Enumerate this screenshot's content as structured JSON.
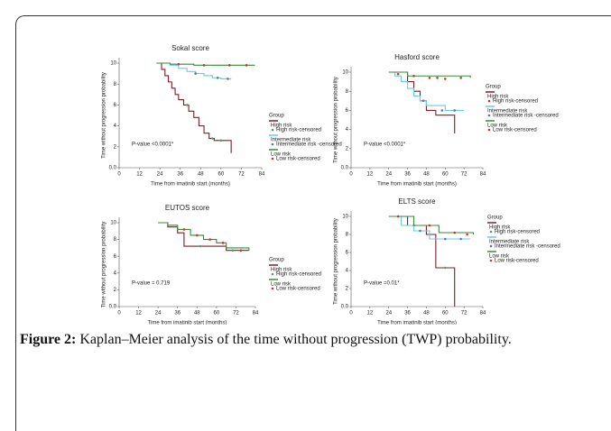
{
  "chart_data": [
    {
      "type": "line",
      "step": true,
      "title": "Sokal score",
      "xlabel": "Time from imatinib start (months)",
      "ylabel": "Time without progression probability",
      "annotation": "P-value <0.0001*",
      "legend_title": "Group",
      "xlim": [
        0,
        84
      ],
      "xticks": [
        0,
        12,
        24,
        36,
        48,
        60,
        72,
        84
      ],
      "ylim": [
        0,
        10
      ],
      "yticks": [
        {
          "value": 0,
          "label": "0.0"
        },
        2,
        4,
        6,
        8,
        10
      ],
      "series": [
        {
          "name": "High risk",
          "style": "step",
          "color": "#7a1f2b",
          "x": [
            22,
            25,
            27,
            29,
            31,
            33,
            35,
            38,
            41,
            44,
            47,
            50,
            53,
            56,
            66,
            66
          ],
          "values": [
            10,
            9.4,
            8.8,
            8.2,
            7.6,
            7,
            6.5,
            6,
            5.4,
            4.8,
            4,
            3.3,
            2.8,
            2.6,
            2.6,
            1.4
          ]
        },
        {
          "name": "High risk-censored",
          "style": "points",
          "color": "#5a9a6a",
          "x": [
            40,
            55,
            60
          ],
          "values": [
            6,
            2.8,
            2.6
          ]
        },
        {
          "name": "Intermediate risk",
          "style": "step",
          "color": "#6cc9e0",
          "x": [
            22,
            30,
            35,
            40,
            45,
            50,
            55,
            60,
            66
          ],
          "values": [
            10,
            9.8,
            9.5,
            9.2,
            9,
            8.8,
            8.6,
            8.5,
            8.5
          ]
        },
        {
          "name": "Intermediate risk -censored",
          "style": "points",
          "color": "#4a7ab0",
          "x": [
            45,
            58,
            64
          ],
          "values": [
            9,
            8.6,
            8.5
          ]
        },
        {
          "name": "Low risk",
          "style": "step",
          "color": "#3a8a3a",
          "x": [
            22,
            30,
            44,
            80
          ],
          "values": [
            10,
            9.9,
            9.8,
            9.8
          ]
        },
        {
          "name": "Low risk-censored",
          "style": "points",
          "color": "#d03030",
          "x": [
            35,
            50,
            65,
            75
          ],
          "values": [
            9.9,
            9.8,
            9.8,
            9.8
          ]
        }
      ]
    },
    {
      "type": "line",
      "step": true,
      "title": "Hasford score",
      "xlabel": "Time from imatinib start (months)",
      "ylabel": "Time without progression probability",
      "annotation": "P-value <0.0001*",
      "legend_title": "Group",
      "xlim": [
        0,
        84
      ],
      "xticks": [
        0,
        12,
        24,
        36,
        48,
        60,
        72,
        84
      ],
      "ylim": [
        0,
        10
      ],
      "yticks": [
        {
          "value": 0,
          "label": "0.0"
        },
        2,
        4,
        6,
        8,
        10
      ],
      "series": [
        {
          "name": "High risk",
          "style": "step",
          "color": "#7a1f2b",
          "x": [
            24,
            36,
            40,
            44,
            48,
            54,
            66,
            66
          ],
          "values": [
            10,
            9,
            8,
            7,
            6,
            5.5,
            5.5,
            3.6
          ]
        },
        {
          "name": "High risk-censored",
          "style": "points",
          "color": "#d03030",
          "x": [
            30,
            50,
            60
          ],
          "values": [
            9.8,
            9.4,
            9.3
          ]
        },
        {
          "name": "Intermediate risk",
          "style": "step",
          "color": "#6cc9e0",
          "x": [
            24,
            28,
            32,
            36,
            40,
            44,
            48,
            60,
            72
          ],
          "values": [
            10,
            9.6,
            9,
            8.3,
            7.5,
            7,
            6.5,
            6,
            6
          ]
        },
        {
          "name": "Intermediate risk -censored",
          "style": "points",
          "color": "#4a7ab0",
          "x": [
            46,
            58,
            66
          ],
          "values": [
            7,
            6,
            6
          ]
        },
        {
          "name": "Low risk",
          "style": "step",
          "color": "#3a8a3a",
          "x": [
            24,
            36,
            76
          ],
          "values": [
            10,
            9.6,
            9.4
          ]
        },
        {
          "name": "Low risk-censored",
          "style": "points",
          "color": "#d03030",
          "x": [
            40,
            55,
            70
          ],
          "values": [
            9.6,
            9.4,
            9.4
          ]
        }
      ]
    },
    {
      "type": "line",
      "step": true,
      "title": "EUTOS score",
      "xlabel": "Time from imatinib start (months)",
      "ylabel": "Time without progression probability",
      "annotation": "P-value = 0.719",
      "legend_title": "Group",
      "xlim": [
        0,
        84
      ],
      "xticks": [
        0,
        12,
        24,
        36,
        48,
        60,
        72,
        84
      ],
      "ylim": [
        0,
        10
      ],
      "yticks": [
        {
          "value": 0,
          "label": "0.0"
        },
        2,
        4,
        6,
        8,
        10
      ],
      "series": [
        {
          "name": "High risk",
          "style": "step",
          "color": "#7a1f2b",
          "x": [
            24,
            30,
            36,
            40,
            60,
            66,
            80
          ],
          "values": [
            10,
            9.5,
            8.8,
            7.2,
            7.2,
            6.7,
            6.7
          ]
        },
        {
          "name": "High risk-censored",
          "style": "points",
          "color": "#5a9a6a",
          "x": [
            50,
            70
          ],
          "values": [
            7.2,
            6.7
          ]
        },
        {
          "name": "Low risk",
          "style": "step",
          "color": "#3a8a3a",
          "x": [
            24,
            30,
            36,
            44,
            52,
            60,
            66,
            80
          ],
          "values": [
            10,
            9.7,
            9.2,
            8.5,
            8,
            7.6,
            7,
            6.7
          ]
        },
        {
          "name": "Low risk-censored",
          "style": "points",
          "color": "#d03030",
          "x": [
            40,
            48,
            56,
            64,
            75
          ],
          "values": [
            9.2,
            8.5,
            8,
            7.6,
            6.7
          ]
        }
      ]
    },
    {
      "type": "line",
      "step": true,
      "title": "ELTS score",
      "xlabel": "Time from imatinib start (months)",
      "ylabel": "Time without progression probability",
      "annotation": "P-value =0.01*",
      "legend_title": "Group",
      "xlim": [
        0,
        84
      ],
      "xticks": [
        0,
        12,
        24,
        36,
        48,
        60,
        72,
        84
      ],
      "ylim": [
        0,
        10
      ],
      "yticks": [
        {
          "value": 0,
          "label": "0.0"
        },
        2,
        4,
        6,
        8,
        10
      ],
      "series": [
        {
          "name": "High risk",
          "style": "step",
          "color": "#7a1f2b",
          "x": [
            24,
            36,
            48,
            54,
            66,
            66
          ],
          "values": [
            10,
            9,
            8,
            4.3,
            4.3,
            0
          ]
        },
        {
          "name": "High risk-censored",
          "style": "points",
          "color": "#5a9a6a",
          "x": [
            40,
            60
          ],
          "values": [
            9,
            4.3
          ]
        },
        {
          "name": "Intermediate risk",
          "style": "step",
          "color": "#6cc9e0",
          "x": [
            24,
            32,
            40,
            50,
            76
          ],
          "values": [
            10,
            9,
            8.4,
            7.5,
            7.5
          ]
        },
        {
          "name": "Intermediate risk -censored",
          "style": "points",
          "color": "#4a7ab0",
          "x": [
            44,
            60,
            70
          ],
          "values": [
            8.4,
            7.5,
            7.5
          ]
        },
        {
          "name": "Low risk",
          "style": "step",
          "color": "#3a8a3a",
          "x": [
            24,
            40,
            56,
            78
          ],
          "values": [
            10,
            9,
            8.2,
            8
          ]
        },
        {
          "name": "Low risk-censored",
          "style": "points",
          "color": "#d03030",
          "x": [
            30,
            50,
            66,
            74
          ],
          "values": [
            10,
            9,
            8.2,
            8
          ]
        }
      ]
    }
  ],
  "caption": {
    "label": "Figure 2:",
    "text": "Kaplan–Meier analysis of the time without progression (TWP) probability."
  }
}
